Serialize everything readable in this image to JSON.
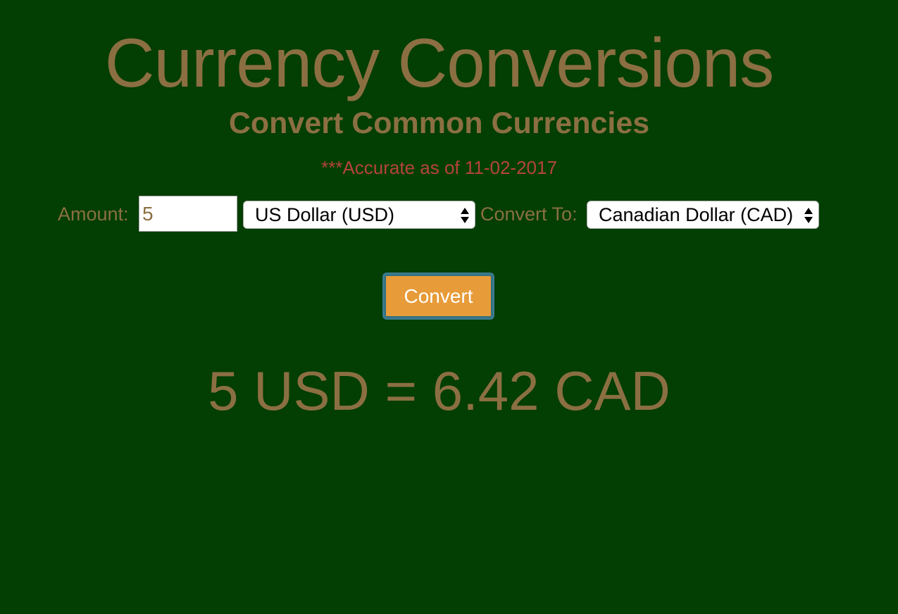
{
  "header": {
    "title": "Currency Conversions",
    "subtitle": "Convert Common Currencies",
    "disclaimer": "***Accurate as of 11-02-2017"
  },
  "form": {
    "amount_label": "Amount:",
    "amount_value": "5",
    "from_currency": "US Dollar (USD)",
    "convert_to_label": "Convert To:",
    "to_currency": "Canadian Dollar (CAD)",
    "convert_button": "Convert"
  },
  "result": {
    "text": "5 USD = 6.42 CAD"
  },
  "colors": {
    "background": "#033e03",
    "text_brown": "#8b6f42",
    "disclaimer_red": "#b6443a",
    "button_orange": "#e79b39",
    "button_border": "#3b7a8e"
  },
  "icons": {
    "select_arrow": "up-down-arrows-icon"
  }
}
